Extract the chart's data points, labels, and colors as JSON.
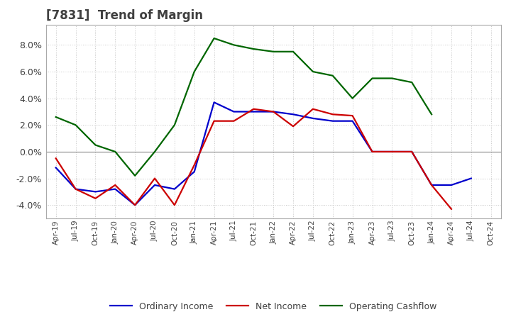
{
  "title": "[7831]  Trend of Margin",
  "title_color": "#404040",
  "background_color": "#ffffff",
  "plot_bg_color": "#ffffff",
  "grid_color": "#c8c8c8",
  "ylim": [
    -0.05,
    0.095
  ],
  "yticks": [
    -0.04,
    -0.02,
    0.0,
    0.02,
    0.04,
    0.06,
    0.08
  ],
  "x_labels": [
    "Apr-19",
    "Jul-19",
    "Oct-19",
    "Jan-20",
    "Apr-20",
    "Jul-20",
    "Oct-20",
    "Jan-21",
    "Apr-21",
    "Jul-21",
    "Oct-21",
    "Jan-22",
    "Apr-22",
    "Jul-22",
    "Oct-22",
    "Jan-23",
    "Apr-23",
    "Jul-23",
    "Oct-23",
    "Jan-24",
    "Apr-24",
    "Jul-24",
    "Oct-24"
  ],
  "ordinary_income": [
    -0.012,
    -0.028,
    -0.03,
    -0.028,
    -0.04,
    -0.025,
    -0.028,
    -0.015,
    0.037,
    0.03,
    0.03,
    0.03,
    0.028,
    0.025,
    0.023,
    0.023,
    -0.0,
    -0.0,
    -0.0,
    -0.025,
    -0.025,
    -0.02,
    null
  ],
  "net_income": [
    -0.005,
    -0.028,
    -0.035,
    -0.025,
    -0.04,
    -0.02,
    -0.04,
    -0.01,
    0.023,
    0.023,
    0.032,
    0.03,
    0.019,
    0.032,
    0.028,
    0.027,
    0.0,
    -0.0,
    -0.0,
    -0.025,
    -0.043,
    null,
    null
  ],
  "operating_cashflow": [
    0.026,
    0.02,
    0.005,
    -0.0,
    -0.018,
    0.0,
    0.02,
    0.06,
    0.085,
    0.08,
    0.077,
    0.075,
    0.075,
    0.06,
    0.057,
    0.04,
    0.055,
    0.055,
    0.052,
    0.028,
    null,
    null,
    null
  ],
  "line_colors": {
    "ordinary_income": "#0000cc",
    "net_income": "#cc0000",
    "operating_cashflow": "#006600"
  },
  "legend_labels": {
    "ordinary_income": "Ordinary Income",
    "net_income": "Net Income",
    "operating_cashflow": "Operating Cashflow"
  },
  "figsize": [
    7.2,
    4.4
  ],
  "dpi": 100
}
